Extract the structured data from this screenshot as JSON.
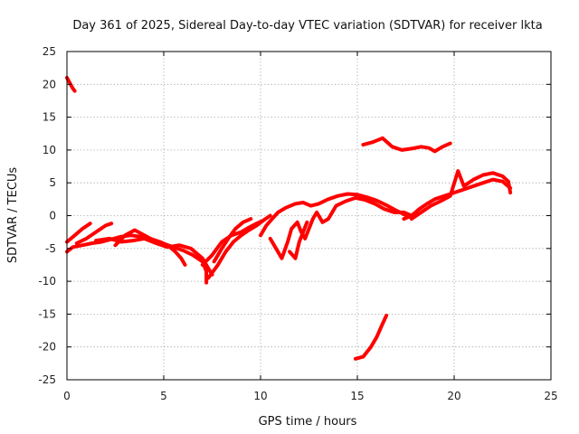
{
  "chart_data": {
    "type": "line",
    "title": "Day 361 of 2025, Sidereal Day-to-day VTEC variation (SDTVAR) for receiver lkta",
    "xlabel": "GPS time / hours",
    "ylabel": "SDTVAR / TECUs",
    "xlim": [
      0,
      25
    ],
    "ylim": [
      -25,
      25
    ],
    "x_ticks": [
      0,
      5,
      10,
      15,
      20,
      25
    ],
    "y_ticks": [
      -25,
      -20,
      -15,
      -10,
      -5,
      0,
      5,
      10,
      15,
      20,
      25
    ],
    "grid": true,
    "color": "#ff0000",
    "series": [
      {
        "name": "trace-1",
        "points": [
          [
            0.0,
            21.0
          ],
          [
            0.15,
            20.2
          ],
          [
            0.3,
            19.4
          ],
          [
            0.4,
            19.0
          ]
        ]
      },
      {
        "name": "trace-2",
        "points": [
          [
            0.0,
            -5.5
          ],
          [
            0.3,
            -4.8
          ],
          [
            0.8,
            -4.5
          ],
          [
            1.3,
            -4.2
          ],
          [
            1.8,
            -4.0
          ],
          [
            2.3,
            -3.6
          ],
          [
            2.8,
            -3.2
          ],
          [
            3.3,
            -3.0
          ],
          [
            3.8,
            -3.2
          ],
          [
            4.3,
            -3.5
          ],
          [
            4.8,
            -4.0
          ],
          [
            5.2,
            -4.5
          ],
          [
            5.6,
            -5.5
          ],
          [
            5.9,
            -6.5
          ],
          [
            6.1,
            -7.5
          ]
        ]
      },
      {
        "name": "trace-3",
        "points": [
          [
            0.0,
            -4.0
          ],
          [
            0.4,
            -3.0
          ],
          [
            0.8,
            -2.0
          ],
          [
            1.2,
            -1.2
          ]
        ]
      },
      {
        "name": "trace-4",
        "points": [
          [
            0.5,
            -4.2
          ],
          [
            1.0,
            -3.5
          ],
          [
            1.5,
            -2.5
          ],
          [
            2.0,
            -1.5
          ],
          [
            2.3,
            -1.2
          ]
        ]
      },
      {
        "name": "trace-5",
        "points": [
          [
            1.5,
            -3.8
          ],
          [
            2.2,
            -3.5
          ],
          [
            2.8,
            -4.0
          ],
          [
            3.4,
            -3.8
          ],
          [
            4.0,
            -3.5
          ],
          [
            4.6,
            -4.2
          ],
          [
            5.2,
            -4.8
          ],
          [
            5.8,
            -4.5
          ],
          [
            6.4,
            -5.0
          ],
          [
            7.0,
            -6.5
          ],
          [
            7.3,
            -8.0
          ],
          [
            7.5,
            -9.0
          ]
        ]
      },
      {
        "name": "trace-6",
        "points": [
          [
            2.5,
            -4.5
          ],
          [
            3.0,
            -3.0
          ],
          [
            3.5,
            -2.2
          ],
          [
            4.0,
            -3.0
          ],
          [
            4.5,
            -3.8
          ],
          [
            5.0,
            -4.3
          ],
          [
            5.5,
            -4.8
          ],
          [
            6.0,
            -5.3
          ],
          [
            6.5,
            -6.0
          ],
          [
            7.0,
            -7.0
          ],
          [
            7.2,
            -8.5
          ],
          [
            7.2,
            -10.2
          ]
        ]
      },
      {
        "name": "trace-7",
        "points": [
          [
            7.0,
            -7.5
          ],
          [
            7.5,
            -6.0
          ],
          [
            8.0,
            -4.0
          ],
          [
            8.5,
            -3.0
          ],
          [
            9.0,
            -2.5
          ],
          [
            9.4,
            -1.8
          ],
          [
            9.8,
            -1.2
          ],
          [
            10.1,
            -0.8
          ]
        ]
      },
      {
        "name": "trace-8",
        "points": [
          [
            7.3,
            -9.5
          ],
          [
            7.8,
            -7.5
          ],
          [
            8.2,
            -5.5
          ],
          [
            8.6,
            -4.0
          ],
          [
            9.0,
            -3.0
          ],
          [
            9.4,
            -2.2
          ],
          [
            9.8,
            -1.5
          ],
          [
            10.2,
            -0.6
          ],
          [
            10.5,
            0.0
          ]
        ]
      },
      {
        "name": "trace-9",
        "points": [
          [
            7.6,
            -7.0
          ],
          [
            8.0,
            -5.0
          ],
          [
            8.4,
            -3.2
          ],
          [
            8.7,
            -2.0
          ],
          [
            9.1,
            -1.0
          ],
          [
            9.5,
            -0.5
          ]
        ]
      },
      {
        "name": "trace-10",
        "points": [
          [
            10.0,
            -3.0
          ],
          [
            10.3,
            -1.5
          ],
          [
            10.6,
            -0.5
          ],
          [
            10.9,
            0.5
          ],
          [
            11.3,
            1.2
          ],
          [
            11.8,
            1.8
          ],
          [
            12.2,
            2.0
          ],
          [
            12.6,
            1.5
          ],
          [
            13.0,
            1.8
          ],
          [
            13.5,
            2.5
          ],
          [
            14.0,
            3.0
          ],
          [
            14.5,
            3.3
          ],
          [
            15.0,
            3.2
          ],
          [
            15.5,
            2.8
          ],
          [
            16.0,
            2.3
          ],
          [
            16.5,
            1.6
          ],
          [
            17.0,
            0.8
          ],
          [
            17.4,
            0.2
          ],
          [
            17.8,
            -0.3
          ]
        ]
      },
      {
        "name": "trace-11",
        "points": [
          [
            10.5,
            -3.5
          ],
          [
            10.8,
            -5.0
          ],
          [
            11.1,
            -6.5
          ],
          [
            11.4,
            -4.0
          ],
          [
            11.6,
            -2.0
          ],
          [
            11.9,
            -1.0
          ],
          [
            12.1,
            -2.5
          ],
          [
            12.3,
            -3.5
          ],
          [
            12.5,
            -2.0
          ],
          [
            12.7,
            -0.5
          ],
          [
            12.9,
            0.5
          ],
          [
            13.2,
            -1.0
          ],
          [
            13.5,
            -0.5
          ],
          [
            13.9,
            1.5
          ],
          [
            14.4,
            2.2
          ],
          [
            14.9,
            2.7
          ],
          [
            15.4,
            2.4
          ],
          [
            15.9,
            1.8
          ],
          [
            16.4,
            1.0
          ],
          [
            16.9,
            0.5
          ],
          [
            17.4,
            0.5
          ],
          [
            17.8,
            0.0
          ]
        ]
      },
      {
        "name": "trace-12",
        "points": [
          [
            11.5,
            -5.5
          ],
          [
            11.8,
            -6.5
          ],
          [
            12.0,
            -4.0
          ],
          [
            12.2,
            -2.5
          ],
          [
            12.4,
            -1.0
          ]
        ]
      },
      {
        "name": "trace-13",
        "points": [
          [
            17.4,
            -0.5
          ],
          [
            17.8,
            0.0
          ],
          [
            18.2,
            1.0
          ],
          [
            18.6,
            1.8
          ],
          [
            19.0,
            2.5
          ],
          [
            19.5,
            3.0
          ],
          [
            20.0,
            3.5
          ],
          [
            20.5,
            4.0
          ],
          [
            21.0,
            4.5
          ],
          [
            21.5,
            5.0
          ],
          [
            22.0,
            5.5
          ],
          [
            22.5,
            5.2
          ],
          [
            22.9,
            4.2
          ]
        ]
      },
      {
        "name": "trace-14",
        "points": [
          [
            17.8,
            -0.5
          ],
          [
            18.3,
            0.5
          ],
          [
            18.8,
            1.5
          ],
          [
            19.3,
            2.2
          ],
          [
            19.8,
            3.0
          ],
          [
            20.2,
            6.8
          ],
          [
            20.5,
            4.5
          ],
          [
            21.0,
            5.5
          ],
          [
            21.5,
            6.2
          ],
          [
            22.0,
            6.5
          ],
          [
            22.5,
            6.0
          ],
          [
            22.8,
            5.2
          ],
          [
            22.9,
            3.5
          ]
        ]
      },
      {
        "name": "trace-15",
        "points": [
          [
            15.3,
            10.8
          ],
          [
            15.8,
            11.2
          ],
          [
            16.3,
            11.8
          ],
          [
            16.8,
            10.5
          ],
          [
            17.3,
            10.0
          ],
          [
            17.8,
            10.2
          ],
          [
            18.3,
            10.5
          ],
          [
            18.7,
            10.3
          ],
          [
            19.0,
            9.8
          ],
          [
            19.4,
            10.5
          ],
          [
            19.8,
            11.0
          ]
        ]
      },
      {
        "name": "trace-16",
        "points": [
          [
            14.9,
            -21.8
          ],
          [
            15.3,
            -21.5
          ],
          [
            15.7,
            -20.0
          ],
          [
            16.0,
            -18.5
          ],
          [
            16.3,
            -16.5
          ],
          [
            16.5,
            -15.2
          ]
        ]
      }
    ]
  }
}
